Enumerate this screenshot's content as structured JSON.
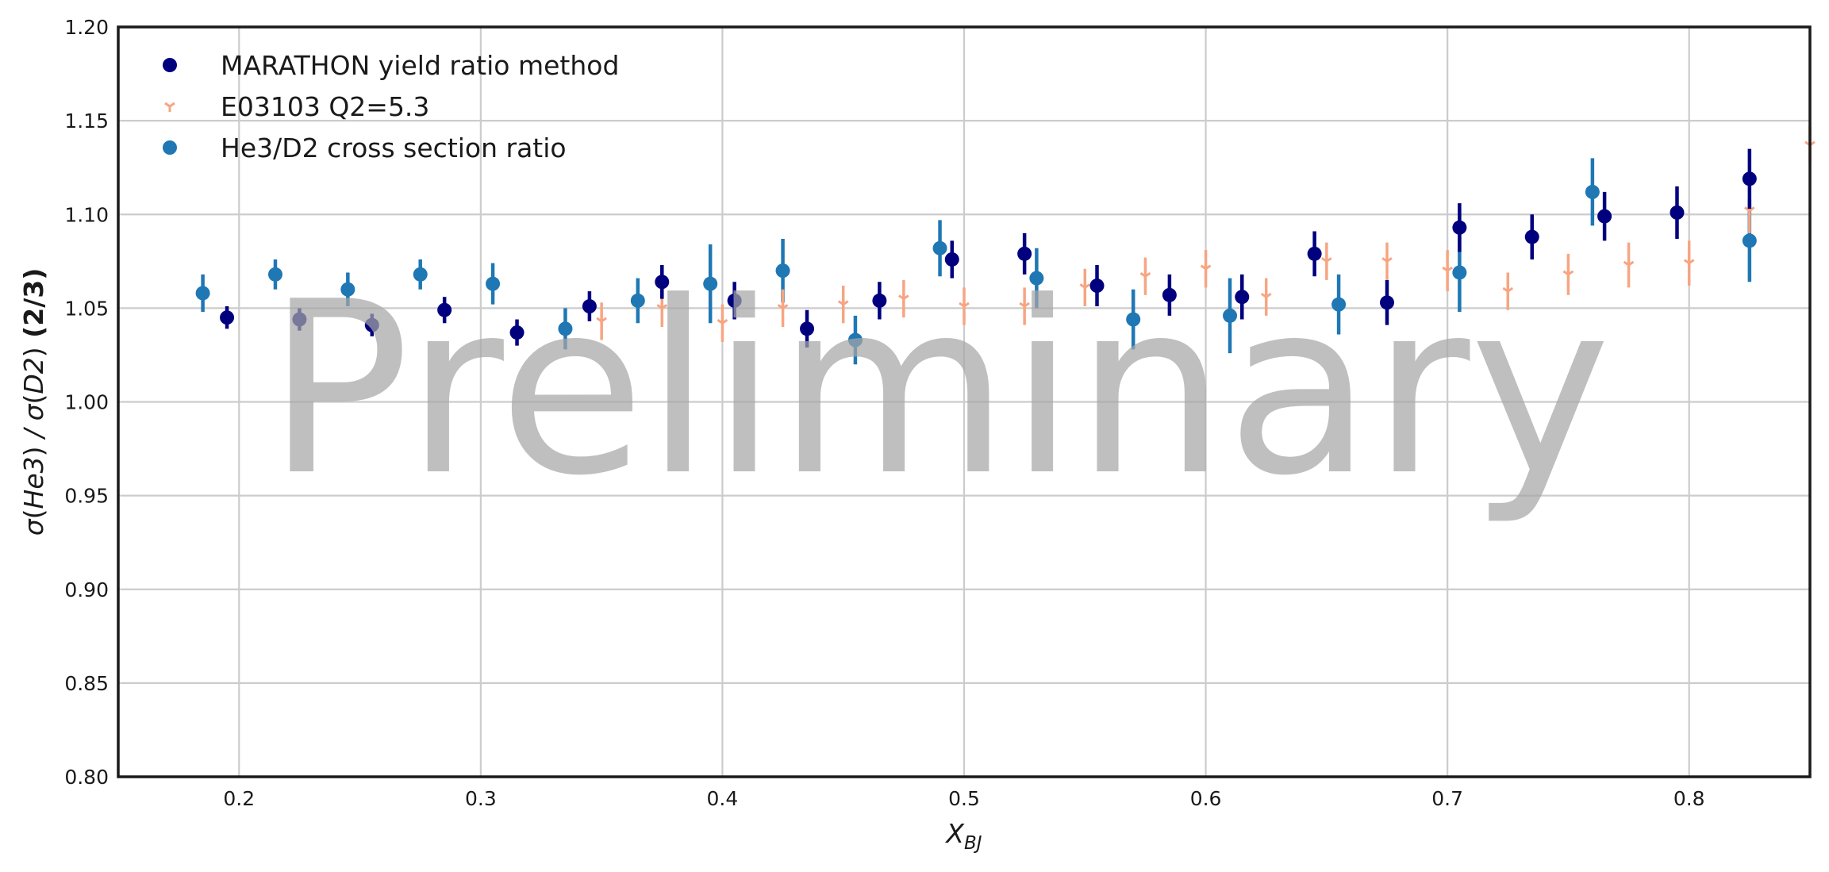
{
  "chart_data": {
    "type": "scatter",
    "title": "",
    "watermark": "Preliminary",
    "xlabel": "X_BJ",
    "ylabel": "σ(He3) / σ(D2) (2/3)",
    "xlim": [
      0.15,
      0.85
    ],
    "ylim": [
      0.8,
      1.2
    ],
    "x_ticks": [
      0.2,
      0.3,
      0.4,
      0.5,
      0.6,
      0.7,
      0.8
    ],
    "x_tick_labels": [
      "0.2",
      "0.3",
      "0.4",
      "0.5",
      "0.6",
      "0.7",
      "0.8"
    ],
    "y_ticks": [
      0.8,
      0.85,
      0.9,
      0.95,
      1.0,
      1.05,
      1.1,
      1.15,
      1.2
    ],
    "y_tick_labels": [
      "0.80",
      "0.85",
      "0.90",
      "0.95",
      "1.00",
      "1.05",
      "1.10",
      "1.15",
      "1.20"
    ],
    "grid": true,
    "legend_position": "top-left",
    "series": [
      {
        "name": "MARATHON yield ratio method",
        "marker": "circle",
        "color": "#00007f",
        "points": [
          {
            "x": 0.195,
            "y": 1.045,
            "err": 0.006
          },
          {
            "x": 0.225,
            "y": 1.044,
            "err": 0.006
          },
          {
            "x": 0.255,
            "y": 1.041,
            "err": 0.006
          },
          {
            "x": 0.285,
            "y": 1.049,
            "err": 0.007
          },
          {
            "x": 0.315,
            "y": 1.037,
            "err": 0.007
          },
          {
            "x": 0.345,
            "y": 1.051,
            "err": 0.008
          },
          {
            "x": 0.375,
            "y": 1.064,
            "err": 0.009
          },
          {
            "x": 0.405,
            "y": 1.054,
            "err": 0.01
          },
          {
            "x": 0.435,
            "y": 1.039,
            "err": 0.01
          },
          {
            "x": 0.465,
            "y": 1.054,
            "err": 0.01
          },
          {
            "x": 0.495,
            "y": 1.076,
            "err": 0.01
          },
          {
            "x": 0.525,
            "y": 1.079,
            "err": 0.011
          },
          {
            "x": 0.555,
            "y": 1.062,
            "err": 0.011
          },
          {
            "x": 0.585,
            "y": 1.057,
            "err": 0.011
          },
          {
            "x": 0.615,
            "y": 1.056,
            "err": 0.012
          },
          {
            "x": 0.645,
            "y": 1.079,
            "err": 0.012
          },
          {
            "x": 0.675,
            "y": 1.053,
            "err": 0.012
          },
          {
            "x": 0.705,
            "y": 1.093,
            "err": 0.013
          },
          {
            "x": 0.735,
            "y": 1.088,
            "err": 0.012
          },
          {
            "x": 0.765,
            "y": 1.099,
            "err": 0.013
          },
          {
            "x": 0.795,
            "y": 1.101,
            "err": 0.014
          },
          {
            "x": 0.825,
            "y": 1.119,
            "err": 0.016
          }
        ]
      },
      {
        "name": "E03103 Q2=5.3",
        "marker": "tri_down",
        "color": "#f7a582",
        "points": [
          {
            "x": 0.35,
            "y": 1.043,
            "err": 0.01
          },
          {
            "x": 0.375,
            "y": 1.05,
            "err": 0.01
          },
          {
            "x": 0.4,
            "y": 1.042,
            "err": 0.01
          },
          {
            "x": 0.425,
            "y": 1.05,
            "err": 0.01
          },
          {
            "x": 0.45,
            "y": 1.052,
            "err": 0.01
          },
          {
            "x": 0.475,
            "y": 1.055,
            "err": 0.01
          },
          {
            "x": 0.5,
            "y": 1.051,
            "err": 0.01
          },
          {
            "x": 0.525,
            "y": 1.051,
            "err": 0.01
          },
          {
            "x": 0.55,
            "y": 1.061,
            "err": 0.01
          },
          {
            "x": 0.575,
            "y": 1.067,
            "err": 0.01
          },
          {
            "x": 0.6,
            "y": 1.071,
            "err": 0.01
          },
          {
            "x": 0.625,
            "y": 1.056,
            "err": 0.01
          },
          {
            "x": 0.65,
            "y": 1.075,
            "err": 0.01
          },
          {
            "x": 0.675,
            "y": 1.075,
            "err": 0.01
          },
          {
            "x": 0.7,
            "y": 1.07,
            "err": 0.011
          },
          {
            "x": 0.725,
            "y": 1.059,
            "err": 0.01
          },
          {
            "x": 0.75,
            "y": 1.068,
            "err": 0.011
          },
          {
            "x": 0.775,
            "y": 1.073,
            "err": 0.012
          },
          {
            "x": 0.8,
            "y": 1.074,
            "err": 0.012
          },
          {
            "x": 0.825,
            "y": 1.102,
            "err": 0.012
          },
          {
            "x": 0.85,
            "y": 1.137,
            "err": 0.01
          }
        ]
      },
      {
        "name": "He3/D2 cross section ratio",
        "marker": "circle",
        "color": "#1f77b4",
        "points": [
          {
            "x": 0.185,
            "y": 1.058,
            "err": 0.01
          },
          {
            "x": 0.215,
            "y": 1.068,
            "err": 0.008
          },
          {
            "x": 0.245,
            "y": 1.06,
            "err": 0.009
          },
          {
            "x": 0.275,
            "y": 1.068,
            "err": 0.008
          },
          {
            "x": 0.305,
            "y": 1.063,
            "err": 0.011
          },
          {
            "x": 0.335,
            "y": 1.039,
            "err": 0.011
          },
          {
            "x": 0.365,
            "y": 1.054,
            "err": 0.012
          },
          {
            "x": 0.395,
            "y": 1.063,
            "err": 0.021
          },
          {
            "x": 0.425,
            "y": 1.07,
            "err": 0.017
          },
          {
            "x": 0.455,
            "y": 1.033,
            "err": 0.013
          },
          {
            "x": 0.49,
            "y": 1.082,
            "err": 0.015
          },
          {
            "x": 0.53,
            "y": 1.066,
            "err": 0.016
          },
          {
            "x": 0.57,
            "y": 1.044,
            "err": 0.016
          },
          {
            "x": 0.61,
            "y": 1.046,
            "err": 0.02
          },
          {
            "x": 0.655,
            "y": 1.052,
            "err": 0.016
          },
          {
            "x": 0.705,
            "y": 1.069,
            "err": 0.021
          },
          {
            "x": 0.76,
            "y": 1.112,
            "err": 0.018
          },
          {
            "x": 0.825,
            "y": 1.086,
            "err": 0.022
          }
        ]
      }
    ]
  }
}
